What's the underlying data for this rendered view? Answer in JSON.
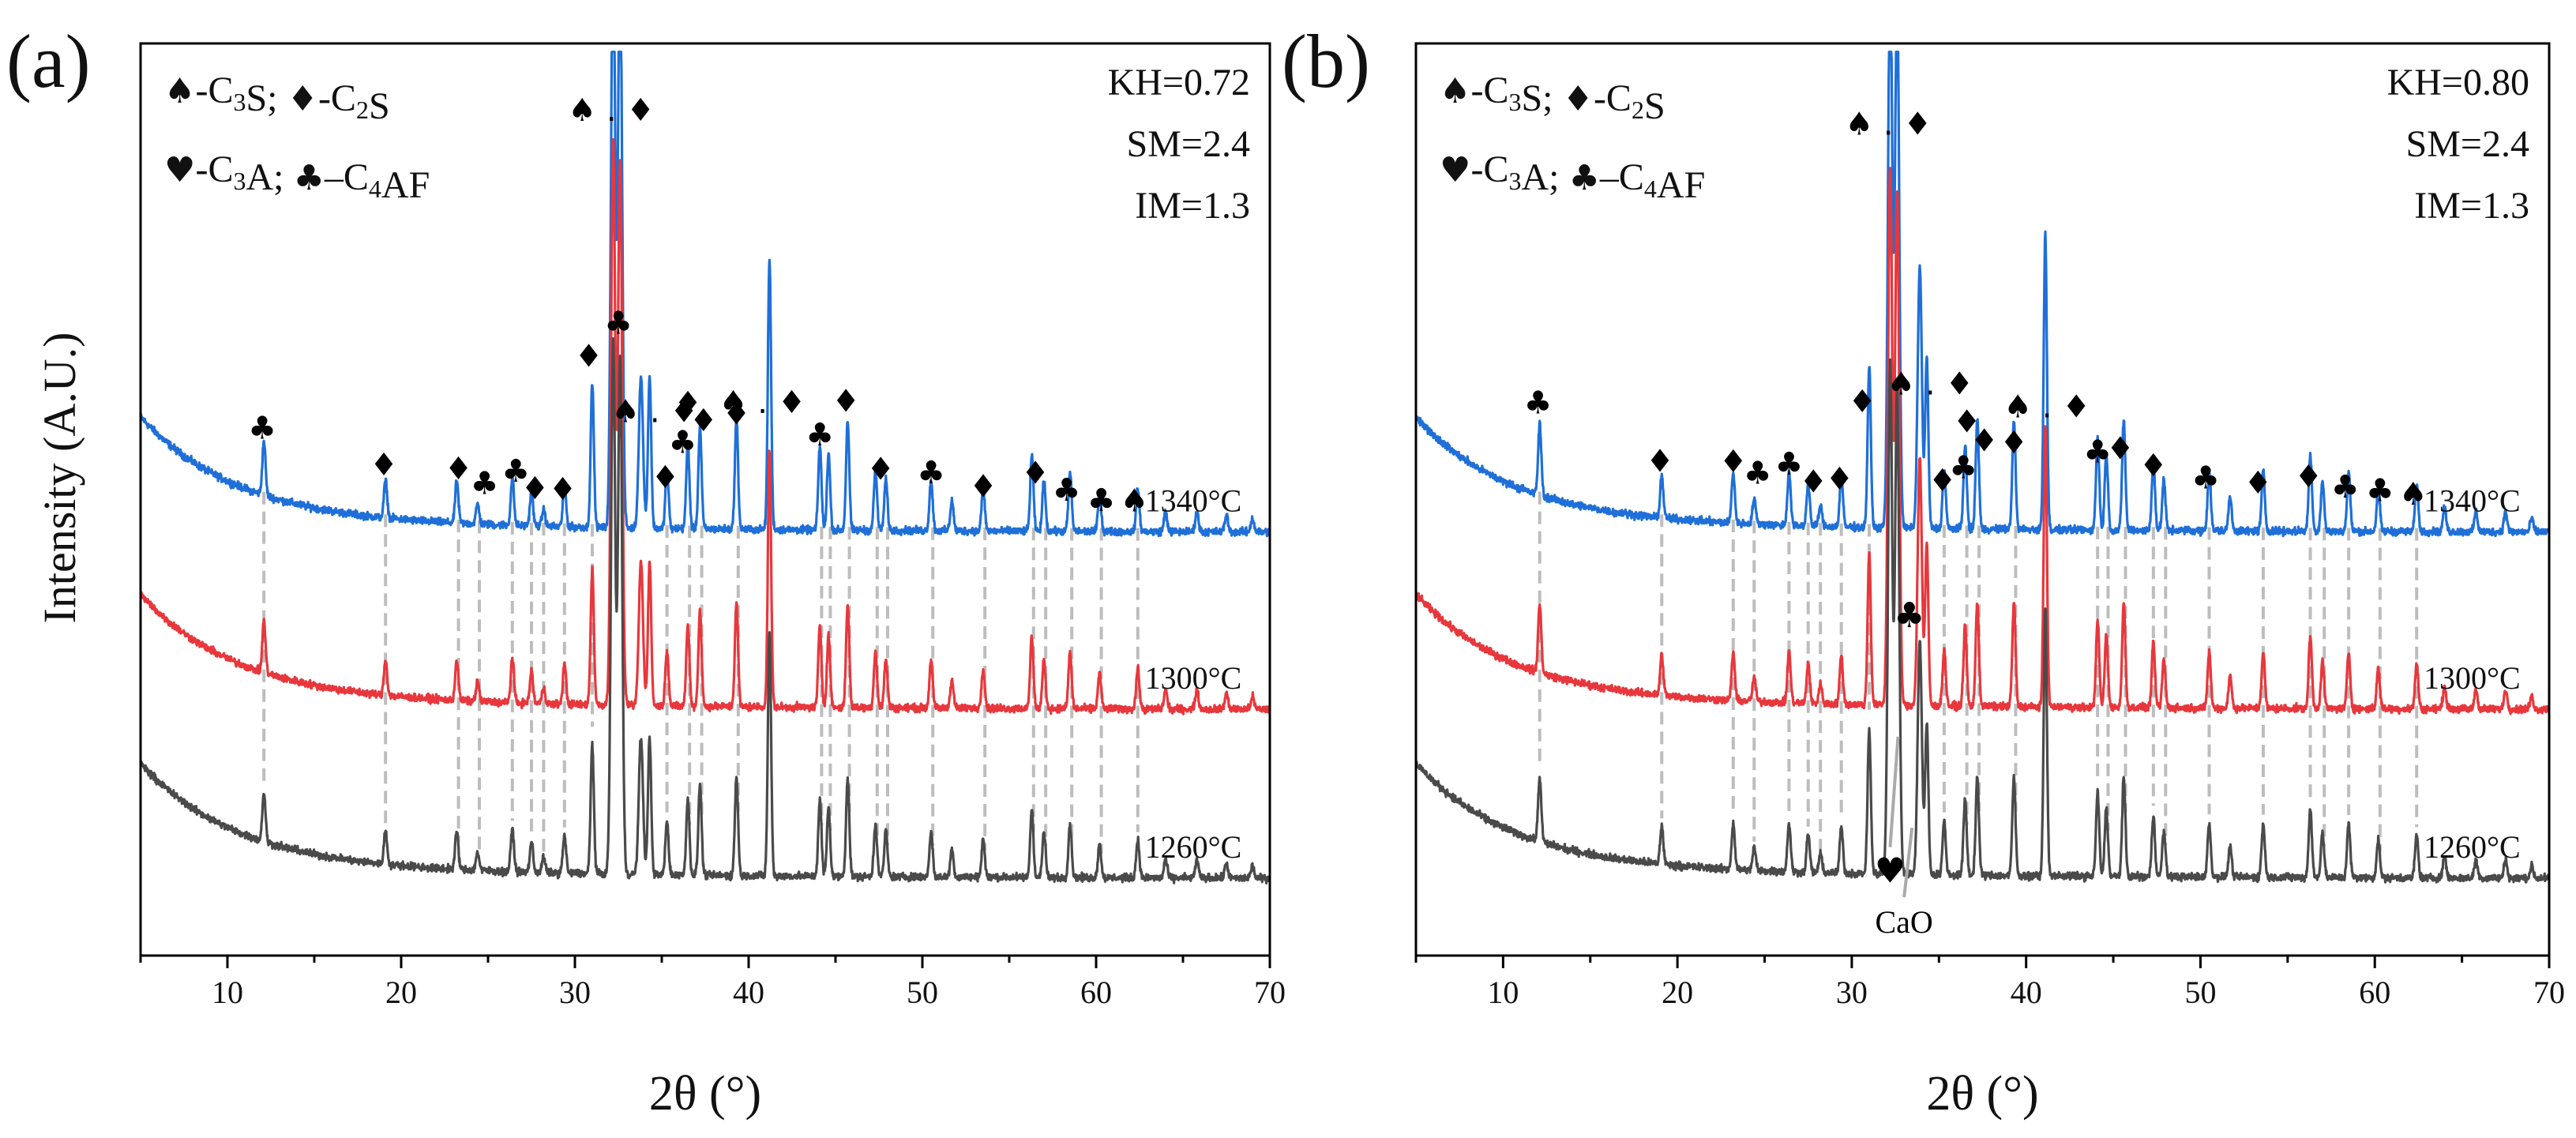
{
  "y_axis_label": "Intensity (A.U.)",
  "legend_lines": [
    [
      {
        "sym": "♠",
        "t": "-C"
      },
      {
        "sub": "3"
      },
      {
        "t": "S; "
      },
      {
        "sym": "♦",
        "t": "-C"
      },
      {
        "sub": "2"
      },
      {
        "t": "S"
      }
    ],
    [
      {
        "sym": "♥",
        "t": "-C"
      },
      {
        "sub": "3"
      },
      {
        "t": "A; "
      },
      {
        "sym": "♣",
        "t": "–C"
      },
      {
        "sub": "4"
      },
      {
        "t": "AF"
      }
    ]
  ],
  "colors": {
    "1340": "#1f6fd8",
    "1300": "#e8373c",
    "1260": "#4a4a4a",
    "guide": "#bdbdbd"
  },
  "chart_data": [
    {
      "type": "line",
      "panel_label": "(a)",
      "xlabel": "2θ (°)",
      "ylabel": "Intensity (A.U.)",
      "xlim": [
        5,
        70
      ],
      "xticks": [
        10,
        20,
        30,
        40,
        50,
        60,
        70
      ],
      "annotation": [
        "KH=0.72",
        "SM=2.4",
        "IM=1.3"
      ],
      "series": [
        {
          "name": "1340°C",
          "key": "1340",
          "offset": 2.05
        },
        {
          "name": "1300°C",
          "key": "1300",
          "offset": 1.0
        },
        {
          "name": "1260°C",
          "key": "1260",
          "offset": 0.0
        }
      ],
      "peaks": [
        [
          12.1,
          0.32
        ],
        [
          19.1,
          0.22
        ],
        [
          23.2,
          0.25
        ],
        [
          24.4,
          0.12
        ],
        [
          26.4,
          0.28
        ],
        [
          27.5,
          0.2
        ],
        [
          28.2,
          0.1
        ],
        [
          29.4,
          0.25
        ],
        [
          31.0,
          0.85
        ],
        [
          32.2,
          3.5
        ],
        [
          32.6,
          3.4
        ],
        [
          33.8,
          0.9
        ],
        [
          34.3,
          0.9
        ],
        [
          35.3,
          0.35
        ],
        [
          36.5,
          0.5
        ],
        [
          37.2,
          0.6
        ],
        [
          39.3,
          0.65
        ],
        [
          41.2,
          1.6
        ],
        [
          44.1,
          0.5
        ],
        [
          44.6,
          0.45
        ],
        [
          45.7,
          0.65
        ],
        [
          47.3,
          0.35
        ],
        [
          47.9,
          0.3
        ],
        [
          50.5,
          0.3
        ],
        [
          51.7,
          0.18
        ],
        [
          53.5,
          0.25
        ],
        [
          56.3,
          0.45
        ],
        [
          57.0,
          0.3
        ],
        [
          58.5,
          0.35
        ],
        [
          60.2,
          0.22
        ],
        [
          62.4,
          0.25
        ],
        [
          64.0,
          0.12
        ],
        [
          65.8,
          0.12
        ],
        [
          67.5,
          0.1
        ],
        [
          69.0,
          0.08
        ]
      ],
      "markers": [
        {
          "x": 12.0,
          "dy": 0.33,
          "sym": "♣"
        },
        {
          "x": 19.0,
          "dy": 0.25,
          "sym": "♦"
        },
        {
          "x": 23.3,
          "dy": 0.26,
          "sym": "♦"
        },
        {
          "x": 24.8,
          "dy": 0.18,
          "sym": "♣"
        },
        {
          "x": 26.6,
          "dy": 0.26,
          "sym": "♣"
        },
        {
          "x": 27.7,
          "dy": 0.16,
          "sym": "♦"
        },
        {
          "x": 29.3,
          "dy": 0.16,
          "sym": "♦"
        },
        {
          "x": 30.8,
          "dy": 0.95,
          "sym": "♦"
        },
        {
          "x": 32.5,
          "dy": 1.15,
          "sym": "♣"
        },
        {
          "x": 35.2,
          "dy": 0.24,
          "sym": "♦"
        },
        {
          "x": 36.2,
          "dy": 0.45,
          "sym": "♣"
        },
        {
          "x": 36.5,
          "dy": 0.68,
          "sym": "♦"
        },
        {
          "x": 37.4,
          "dy": 0.58,
          "sym": "♦"
        },
        {
          "x": 39.3,
          "dy": 0.62,
          "sym": "♦"
        },
        {
          "x": 44.1,
          "dy": 0.5,
          "sym": "♣"
        },
        {
          "x": 45.6,
          "dy": 0.7,
          "sym": "♦"
        },
        {
          "x": 47.6,
          "dy": 0.3,
          "sym": "♦"
        },
        {
          "x": 50.5,
          "dy": 0.28,
          "sym": "♣"
        },
        {
          "x": 53.5,
          "dy": 0.2,
          "sym": "♦"
        },
        {
          "x": 56.5,
          "dy": 0.28,
          "sym": "♦"
        },
        {
          "x": 58.3,
          "dy": 0.18,
          "sym": "♣"
        },
        {
          "x": 60.3,
          "dy": 0.12,
          "sym": "♣"
        },
        {
          "x": 62.2,
          "dy": 0.12,
          "sym": "♠"
        }
      ],
      "pair_labels": [
        {
          "x": 32.1,
          "y_frac": 0.915
        },
        {
          "x": 34.6,
          "y_frac": 0.585
        },
        {
          "x": 40.8,
          "y_frac": 0.595
        }
      ],
      "guides": [
        12.1,
        19.1,
        23.3,
        24.5,
        26.4,
        27.5,
        28.2,
        29.4,
        31.0,
        35.3,
        36.6,
        37.3,
        39.4,
        44.2,
        44.7,
        45.8,
        47.4,
        48.0,
        50.6,
        53.6,
        56.4,
        57.1,
        58.6,
        60.3,
        62.4
      ],
      "extra_labels": []
    },
    {
      "type": "line",
      "panel_label": "(b)",
      "xlabel": "2θ (°)",
      "ylabel": "",
      "xlim": [
        5,
        70
      ],
      "xticks": [
        10,
        20,
        30,
        40,
        50,
        60,
        70
      ],
      "annotation": [
        "KH=0.80",
        "SM=2.4",
        "IM=1.3"
      ],
      "series": [
        {
          "name": "1340°C",
          "key": "1340",
          "offset": 2.05
        },
        {
          "name": "1300°C",
          "key": "1300",
          "offset": 1.0
        },
        {
          "name": "1260°C",
          "key": "1260",
          "offset": 0.0
        }
      ],
      "peaks": [
        [
          12.1,
          0.42
        ],
        [
          19.1,
          0.25
        ],
        [
          23.2,
          0.3
        ],
        [
          24.4,
          0.15
        ],
        [
          26.4,
          0.32
        ],
        [
          27.5,
          0.25
        ],
        [
          28.2,
          0.12
        ],
        [
          29.4,
          0.3
        ],
        [
          31.0,
          0.95
        ],
        [
          32.2,
          3.35
        ],
        [
          32.6,
          3.2
        ],
        [
          33.9,
          1.55
        ],
        [
          34.3,
          1.0
        ],
        [
          35.3,
          0.35
        ],
        [
          36.5,
          0.5
        ],
        [
          37.2,
          0.65
        ],
        [
          39.3,
          0.65
        ],
        [
          41.1,
          1.75
        ],
        [
          44.1,
          0.55
        ],
        [
          44.6,
          0.45
        ],
        [
          45.6,
          0.65
        ],
        [
          47.3,
          0.4
        ],
        [
          47.9,
          0.3
        ],
        [
          50.5,
          0.35
        ],
        [
          51.7,
          0.2
        ],
        [
          53.6,
          0.35
        ],
        [
          56.3,
          0.45
        ],
        [
          57.0,
          0.3
        ],
        [
          58.5,
          0.35
        ],
        [
          60.2,
          0.25
        ],
        [
          62.4,
          0.28
        ],
        [
          64.0,
          0.14
        ],
        [
          65.8,
          0.12
        ],
        [
          67.5,
          0.12
        ],
        [
          69.0,
          0.08
        ]
      ],
      "markers": [
        {
          "x": 12.0,
          "dy": 0.48,
          "sym": "♣"
        },
        {
          "x": 19.0,
          "dy": 0.27,
          "sym": "♦"
        },
        {
          "x": 23.2,
          "dy": 0.3,
          "sym": "♦"
        },
        {
          "x": 24.6,
          "dy": 0.24,
          "sym": "♣"
        },
        {
          "x": 26.4,
          "dy": 0.3,
          "sym": "♣"
        },
        {
          "x": 27.8,
          "dy": 0.2,
          "sym": "♦"
        },
        {
          "x": 29.3,
          "dy": 0.22,
          "sym": "♦"
        },
        {
          "x": 30.6,
          "dy": 0.68,
          "sym": "♦"
        },
        {
          "x": 35.2,
          "dy": 0.22,
          "sym": "♦"
        },
        {
          "x": 36.4,
          "dy": 0.3,
          "sym": "♣"
        },
        {
          "x": 36.6,
          "dy": 0.57,
          "sym": "♦"
        },
        {
          "x": 37.6,
          "dy": 0.46,
          "sym": "♦"
        },
        {
          "x": 39.3,
          "dy": 0.45,
          "sym": "♦"
        },
        {
          "x": 44.1,
          "dy": 0.4,
          "sym": "♣"
        },
        {
          "x": 45.4,
          "dy": 0.42,
          "sym": "♦"
        },
        {
          "x": 47.3,
          "dy": 0.32,
          "sym": "♦"
        },
        {
          "x": 50.3,
          "dy": 0.25,
          "sym": "♣"
        },
        {
          "x": 53.3,
          "dy": 0.22,
          "sym": "♦"
        },
        {
          "x": 56.2,
          "dy": 0.26,
          "sym": "♦"
        },
        {
          "x": 58.3,
          "dy": 0.2,
          "sym": "♣"
        },
        {
          "x": 60.3,
          "dy": 0.18,
          "sym": "♣"
        },
        {
          "x": 62.2,
          "dy": 0.16,
          "sym": "♠"
        }
      ],
      "pair_labels": [
        {
          "x": 32.1,
          "y_frac": 0.9
        },
        {
          "x": 34.5,
          "y_frac": 0.615
        },
        {
          "x": 41.2,
          "y_frac": 0.59
        }
      ],
      "guides": [
        12.1,
        19.1,
        23.2,
        24.4,
        26.4,
        27.5,
        28.2,
        29.4,
        31.0,
        35.3,
        36.6,
        37.3,
        39.4,
        44.1,
        44.7,
        45.7,
        47.3,
        48.0,
        50.5,
        53.6,
        56.3,
        57.1,
        58.5,
        60.3,
        62.4
      ],
      "extra_labels": [
        {
          "name": "c3a-marker",
          "text": "♥",
          "x": 32.2,
          "y_frac": 0.08,
          "arrow_to": 0.24
        },
        {
          "name": "c4af-marker-low",
          "text": "♣",
          "x": 33.3,
          "y_frac": 0.36,
          "arrow_to": null
        },
        {
          "name": "cao-label",
          "text": "CaO",
          "x": 33.0,
          "y_frac": 0.025,
          "arrow_to": 0.14
        }
      ]
    }
  ]
}
